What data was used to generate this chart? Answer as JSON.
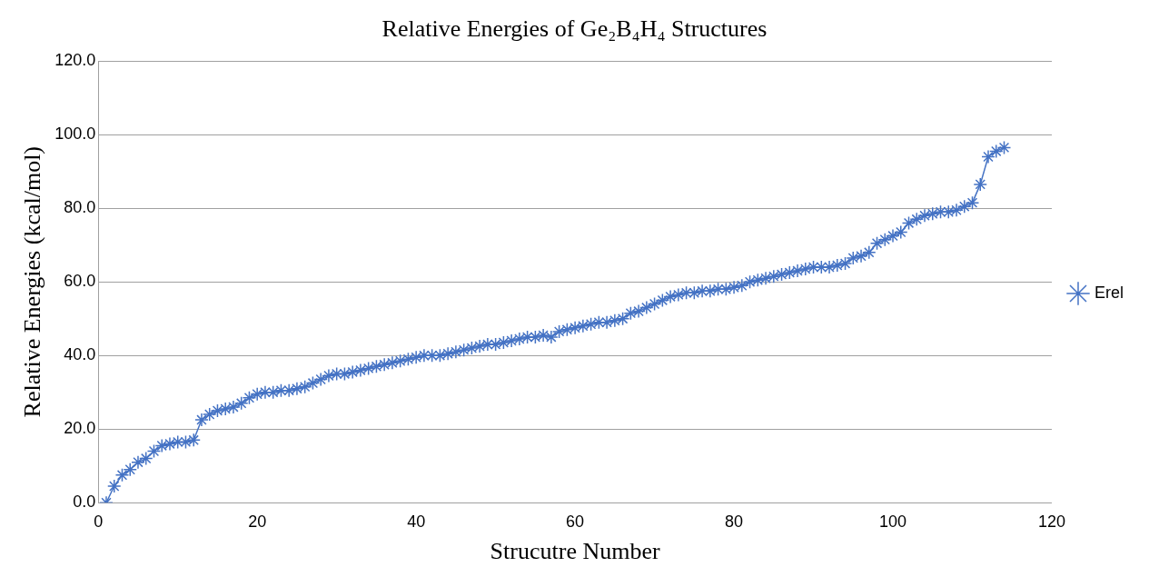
{
  "chart_data": {
    "type": "line",
    "title": "Relative Energies of Ge₂B₄H₄ Structures",
    "xlabel": "Strucutre Number",
    "ylabel": "Relative Energies (kcal/mol)",
    "x": [
      1,
      2,
      3,
      4,
      5,
      6,
      7,
      8,
      9,
      10,
      11,
      12,
      13,
      14,
      15,
      16,
      17,
      18,
      19,
      20,
      21,
      22,
      23,
      24,
      25,
      26,
      27,
      28,
      29,
      30,
      31,
      32,
      33,
      34,
      35,
      36,
      37,
      38,
      39,
      40,
      41,
      42,
      43,
      44,
      45,
      46,
      47,
      48,
      49,
      50,
      51,
      52,
      53,
      54,
      55,
      56,
      57,
      58,
      59,
      60,
      61,
      62,
      63,
      64,
      65,
      66,
      67,
      68,
      69,
      70,
      71,
      72,
      73,
      74,
      75,
      76,
      77,
      78,
      79,
      80,
      81,
      82,
      83,
      84,
      85,
      86,
      87,
      88,
      89,
      90,
      91,
      92,
      93,
      94,
      95,
      96,
      97,
      98,
      99,
      100,
      101,
      102,
      103,
      104,
      105,
      106,
      107,
      108,
      109,
      110,
      111,
      112,
      113,
      114
    ],
    "series": [
      {
        "name": "Erel",
        "color": "#4472c4",
        "values": [
          0,
          4.5,
          7.5,
          9,
          11,
          12,
          14,
          15.5,
          16,
          16.5,
          16.5,
          17,
          22.5,
          24,
          25,
          25.5,
          26,
          27,
          28.5,
          29.5,
          30,
          30,
          30.5,
          30.5,
          31,
          31.5,
          32.5,
          33.5,
          34.5,
          35,
          35,
          35.5,
          36,
          36.5,
          37,
          37.5,
          38,
          38.5,
          39,
          39.5,
          40,
          40,
          40,
          40.5,
          41,
          41.5,
          42,
          42.5,
          43,
          43,
          43.5,
          44,
          44.5,
          45,
          45,
          45.5,
          45,
          46.5,
          47,
          47.5,
          48,
          48.5,
          49,
          49,
          49.5,
          50,
          51.5,
          52,
          53,
          54,
          55,
          56,
          56.5,
          57,
          57,
          57.5,
          57.5,
          58,
          58,
          58.5,
          59,
          60,
          60.5,
          61,
          61.5,
          62,
          62.5,
          63,
          63.5,
          64,
          64,
          64,
          64.5,
          65,
          66.5,
          67,
          68,
          70.5,
          71.5,
          72.5,
          73.5,
          76,
          77,
          78,
          78.5,
          79,
          79,
          79.5,
          80.5,
          81.5,
          86.5,
          94,
          95.5,
          96.5
        ]
      }
    ],
    "xlim": [
      0,
      120
    ],
    "xticks": [
      0,
      20,
      40,
      60,
      80,
      100,
      120
    ],
    "ylim": [
      0,
      120
    ],
    "yticks": [
      {
        "value": 0,
        "label": "0.0"
      },
      {
        "value": 20,
        "label": "20.0"
      },
      {
        "value": 40,
        "label": "40.0"
      },
      {
        "value": 60,
        "label": "60.0"
      },
      {
        "value": 80,
        "label": "80.0"
      },
      {
        "value": 100,
        "label": "100.0"
      },
      {
        "value": 120,
        "label": "120.0"
      }
    ],
    "grid": "y",
    "legend": "right",
    "marker": "cross",
    "line_style": "solid"
  }
}
